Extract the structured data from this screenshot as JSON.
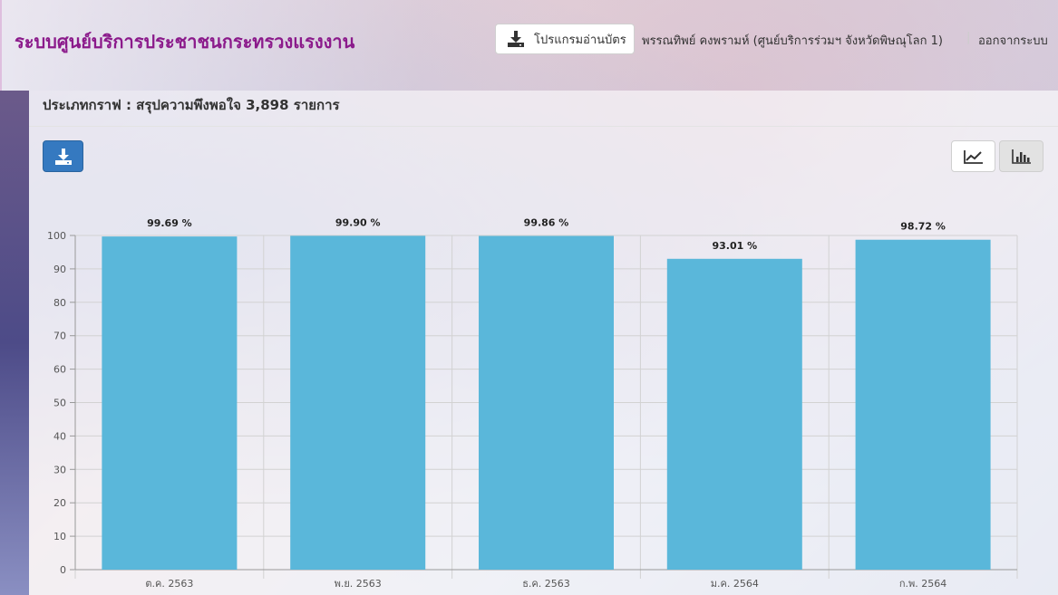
{
  "header": {
    "app_title": "ระบบศูนย์บริการประชาชนกระทรวงแรงงาน",
    "card_reader_label": "โปรแกรมอ่านบัตร",
    "user": "พรรณทิพย์ คงพรามห์ (ศูนย์บริการร่วมฯ จังหวัดพิษณุโลก 1)",
    "separator": "|",
    "logout_label": "ออกจากระบบ"
  },
  "panel": {
    "title": "ประเภทกราฟ : สรุปความพึงพอใจ 3,898 รายการ"
  },
  "icons": {
    "card_reader": "download-tray-icon",
    "download": "download-icon",
    "line_view": "line-chart-icon",
    "bar_view": "bar-chart-icon"
  },
  "colors": {
    "title": "#8b1a8b",
    "bar": "#5ab7da",
    "download_button": "#3579c0"
  },
  "chart_data": {
    "type": "bar",
    "categories": [
      "ต.ค. 2563",
      "พ.ย. 2563",
      "ธ.ค. 2563",
      "ม.ค. 2564",
      "ก.พ. 2564"
    ],
    "values": [
      99.69,
      99.9,
      99.86,
      93.01,
      98.72
    ],
    "data_labels": [
      "99.69 %",
      "99.90 %",
      "99.86 %",
      "93.01 %",
      "98.72 %"
    ],
    "ylim": [
      0,
      100
    ],
    "yticks": [
      0,
      10,
      20,
      30,
      40,
      50,
      60,
      70,
      80,
      90,
      100
    ],
    "grid": true
  }
}
